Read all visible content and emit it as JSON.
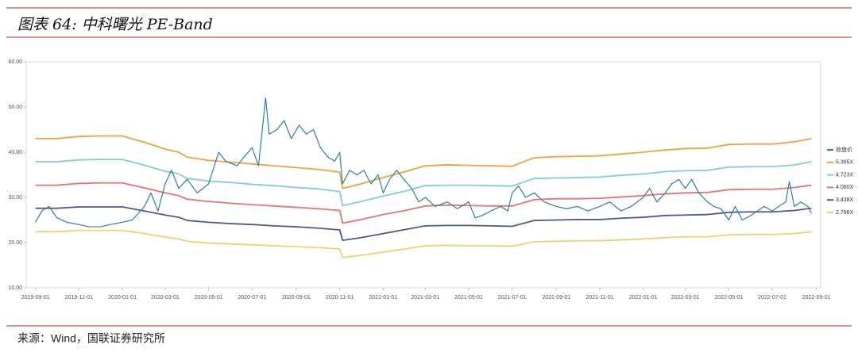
{
  "chart_data": {
    "type": "line",
    "title": "图表 64:  中科曙光 PE-Band",
    "source": "来源：Wind，国联证券研究所",
    "legend": "right",
    "grid": false,
    "xlim": [
      "2019-08-19",
      "2022-09-07"
    ],
    "xticks": [
      "2019-09-01",
      "2019-11-01",
      "2020-01-01",
      "2020-03-01",
      "2020-05-01",
      "2020-07-01",
      "2020-09-01",
      "2020-11-01",
      "2021-01-01",
      "2021-03-01",
      "2021-05-01",
      "2021-07-01",
      "2021-09-01",
      "2021-11-01",
      "2022-01-01",
      "2022-03-01",
      "2022-05-01",
      "2022-07-01",
      "2022-09-01"
    ],
    "ylim": [
      10,
      60
    ],
    "yticks": [
      {
        "value": 10,
        "label": "10.00"
      },
      {
        "value": 20,
        "label": "20.00"
      },
      {
        "value": 30,
        "label": "30.00"
      },
      {
        "value": 40,
        "label": "40.00"
      },
      {
        "value": 50,
        "label": "50.00"
      },
      {
        "value": 60,
        "label": "60.00"
      }
    ],
    "series": [
      {
        "name": "收盘价",
        "color": "#2e7fa8",
        "x": [
          "2019-09-01",
          "2019-09-10",
          "2019-09-20",
          "2019-10-01",
          "2019-10-15",
          "2019-11-01",
          "2019-11-15",
          "2019-12-01",
          "2019-12-15",
          "2020-01-01",
          "2020-01-15",
          "2020-02-01",
          "2020-02-10",
          "2020-02-20",
          "2020-03-01",
          "2020-03-10",
          "2020-03-20",
          "2020-04-01",
          "2020-04-15",
          "2020-05-01",
          "2020-05-15",
          "2020-05-25",
          "2020-06-10",
          "2020-06-20",
          "2020-07-01",
          "2020-07-10",
          "2020-07-20",
          "2020-07-25",
          "2020-08-05",
          "2020-08-15",
          "2020-08-25",
          "2020-09-05",
          "2020-09-15",
          "2020-09-25",
          "2020-10-05",
          "2020-10-15",
          "2020-10-25",
          "2020-11-01",
          "2020-11-05",
          "2020-11-15",
          "2020-11-25",
          "2020-12-05",
          "2020-12-15",
          "2020-12-25",
          "2021-01-01",
          "2021-01-10",
          "2021-01-20",
          "2021-01-30",
          "2021-02-10",
          "2021-02-20",
          "2021-03-01",
          "2021-03-15",
          "2021-04-01",
          "2021-04-15",
          "2021-05-01",
          "2021-05-10",
          "2021-05-20",
          "2021-06-01",
          "2021-06-15",
          "2021-06-25",
          "2021-07-01",
          "2021-07-10",
          "2021-07-20",
          "2021-08-01",
          "2021-08-15",
          "2021-09-01",
          "2021-09-15",
          "2021-10-01",
          "2021-10-15",
          "2021-11-01",
          "2021-11-15",
          "2021-12-01",
          "2021-12-15",
          "2022-01-01",
          "2022-01-10",
          "2022-01-20",
          "2022-02-01",
          "2022-02-10",
          "2022-02-20",
          "2022-03-01",
          "2022-03-10",
          "2022-03-20",
          "2022-04-01",
          "2022-04-10",
          "2022-04-20",
          "2022-05-01",
          "2022-05-10",
          "2022-05-20",
          "2022-06-01",
          "2022-06-10",
          "2022-06-20",
          "2022-07-01",
          "2022-07-10",
          "2022-07-20",
          "2022-07-25",
          "2022-08-01",
          "2022-08-10",
          "2022-08-20",
          "2022-08-25"
        ],
        "values": [
          24.5,
          27,
          28,
          25.5,
          24.5,
          24,
          23.5,
          23.5,
          24,
          24.5,
          25,
          28,
          31,
          27,
          33,
          36,
          32,
          34,
          31,
          33,
          40,
          38,
          37,
          39,
          41,
          37,
          52,
          44,
          45,
          47,
          43,
          46,
          44,
          45,
          41,
          39,
          38,
          40,
          33,
          36,
          35,
          36,
          33,
          35,
          31,
          34,
          36,
          34,
          32,
          29,
          30,
          28,
          29,
          27.5,
          29,
          25.5,
          26,
          27,
          28,
          27,
          31,
          32.5,
          30,
          31,
          29,
          28,
          27.5,
          28,
          27,
          28,
          29,
          27,
          28,
          30,
          32,
          29,
          31,
          33,
          34,
          32,
          34,
          31,
          29,
          28,
          27.5,
          25,
          28,
          25,
          26,
          27,
          28,
          27,
          28,
          29,
          33.5,
          28,
          29,
          28,
          26.5
        ]
      },
      {
        "name": "5.365X",
        "color": "#f5a03c",
        "x": [
          "2019-09-01",
          "2019-10-01",
          "2019-11-01",
          "2019-12-01",
          "2020-01-01",
          "2020-02-01",
          "2020-03-01",
          "2020-03-20",
          "2020-04-01",
          "2020-05-01",
          "2020-06-01",
          "2020-07-01",
          "2020-08-01",
          "2020-09-01",
          "2020-10-01",
          "2020-11-01",
          "2020-11-05",
          "2020-12-01",
          "2021-01-01",
          "2021-02-01",
          "2021-03-01",
          "2021-04-01",
          "2021-05-01",
          "2021-06-01",
          "2021-07-01",
          "2021-08-01",
          "2021-09-01",
          "2021-10-01",
          "2021-11-01",
          "2021-12-01",
          "2022-01-01",
          "2022-02-01",
          "2022-03-01",
          "2022-04-01",
          "2022-05-01",
          "2022-06-01",
          "2022-07-01",
          "2022-08-01",
          "2022-08-25"
        ],
        "values": [
          43.0,
          43.0,
          43.5,
          43.6,
          43.6,
          42.2,
          40.7,
          40.0,
          38.9,
          38.2,
          37.8,
          37.4,
          37.0,
          36.6,
          36.2,
          35.6,
          32.0,
          33.0,
          34.4,
          35.7,
          37.0,
          37.2,
          37.1,
          37.0,
          36.9,
          38.8,
          39.0,
          39.1,
          39.2,
          39.6,
          40.0,
          40.5,
          40.8,
          40.9,
          41.7,
          41.8,
          41.8,
          42.3,
          43.0
        ]
      },
      {
        "name": "4.723X",
        "color": "#7fd0d0",
        "x": [
          "2019-09-01",
          "2019-10-01",
          "2019-11-01",
          "2019-12-01",
          "2020-01-01",
          "2020-02-01",
          "2020-03-01",
          "2020-03-20",
          "2020-04-01",
          "2020-05-01",
          "2020-06-01",
          "2020-07-01",
          "2020-08-01",
          "2020-09-01",
          "2020-10-01",
          "2020-11-01",
          "2020-11-05",
          "2020-12-01",
          "2021-01-01",
          "2021-02-01",
          "2021-03-01",
          "2021-04-01",
          "2021-05-01",
          "2021-06-01",
          "2021-07-01",
          "2021-08-01",
          "2021-09-01",
          "2021-10-01",
          "2021-11-01",
          "2021-12-01",
          "2022-01-01",
          "2022-02-01",
          "2022-03-01",
          "2022-04-01",
          "2022-05-01",
          "2022-06-01",
          "2022-07-01",
          "2022-08-01",
          "2022-08-25"
        ],
        "values": [
          37.9,
          37.9,
          38.3,
          38.4,
          38.4,
          37.1,
          35.8,
          35.2,
          34.2,
          33.6,
          33.3,
          32.9,
          32.6,
          32.2,
          31.9,
          31.3,
          28.2,
          29.1,
          30.3,
          31.4,
          32.6,
          32.7,
          32.7,
          32.6,
          32.5,
          34.2,
          34.3,
          34.4,
          34.5,
          34.9,
          35.2,
          35.7,
          35.9,
          36.0,
          36.7,
          36.8,
          36.8,
          37.2,
          37.9
        ]
      },
      {
        "name": "4.080X",
        "color": "#ea7272",
        "x": [
          "2019-09-01",
          "2019-10-01",
          "2019-11-01",
          "2019-12-01",
          "2020-01-01",
          "2020-02-01",
          "2020-03-01",
          "2020-03-20",
          "2020-04-01",
          "2020-05-01",
          "2020-06-01",
          "2020-07-01",
          "2020-08-01",
          "2020-09-01",
          "2020-10-01",
          "2020-11-01",
          "2020-11-05",
          "2020-12-01",
          "2021-01-01",
          "2021-02-01",
          "2021-03-01",
          "2021-04-01",
          "2021-05-01",
          "2021-06-01",
          "2021-07-01",
          "2021-08-01",
          "2021-09-01",
          "2021-10-01",
          "2021-11-01",
          "2021-12-01",
          "2022-01-01",
          "2022-02-01",
          "2022-03-01",
          "2022-04-01",
          "2022-05-01",
          "2022-06-01",
          "2022-07-01",
          "2022-08-01",
          "2022-08-25"
        ],
        "values": [
          32.7,
          32.7,
          33.1,
          33.2,
          33.2,
          32.1,
          31.0,
          30.4,
          29.6,
          29.1,
          28.7,
          28.4,
          28.1,
          27.8,
          27.5,
          27.1,
          24.3,
          25.1,
          26.2,
          27.1,
          28.1,
          28.3,
          28.2,
          28.1,
          28.1,
          29.5,
          29.7,
          29.7,
          29.8,
          30.1,
          30.4,
          30.8,
          31.0,
          31.1,
          31.7,
          31.8,
          31.8,
          32.2,
          32.7
        ]
      },
      {
        "name": "3.438X",
        "color": "#4f5a8c",
        "x": [
          "2019-09-01",
          "2019-10-01",
          "2019-11-01",
          "2019-12-01",
          "2020-01-01",
          "2020-02-01",
          "2020-03-01",
          "2020-03-20",
          "2020-04-01",
          "2020-05-01",
          "2020-06-01",
          "2020-07-01",
          "2020-08-01",
          "2020-09-01",
          "2020-10-01",
          "2020-11-01",
          "2020-11-05",
          "2020-12-01",
          "2021-01-01",
          "2021-02-01",
          "2021-03-01",
          "2021-04-01",
          "2021-05-01",
          "2021-06-01",
          "2021-07-01",
          "2021-08-01",
          "2021-09-01",
          "2021-10-01",
          "2021-11-01",
          "2021-12-01",
          "2022-01-01",
          "2022-02-01",
          "2022-03-01",
          "2022-04-01",
          "2022-05-01",
          "2022-06-01",
          "2022-07-01",
          "2022-08-01",
          "2022-08-25"
        ],
        "values": [
          27.6,
          27.6,
          27.9,
          27.9,
          27.9,
          27.0,
          26.1,
          25.6,
          24.9,
          24.5,
          24.2,
          24.0,
          23.7,
          23.5,
          23.2,
          22.8,
          20.5,
          21.1,
          22.0,
          22.9,
          23.7,
          23.8,
          23.8,
          23.7,
          23.6,
          24.9,
          25.0,
          25.1,
          25.1,
          25.4,
          25.6,
          26.0,
          26.1,
          26.2,
          26.7,
          26.8,
          26.8,
          27.1,
          27.6
        ]
      },
      {
        "name": "2.796X",
        "color": "#f0d070",
        "x": [
          "2019-09-01",
          "2019-10-01",
          "2019-11-01",
          "2019-12-01",
          "2020-01-01",
          "2020-02-01",
          "2020-03-01",
          "2020-03-20",
          "2020-04-01",
          "2020-05-01",
          "2020-06-01",
          "2020-07-01",
          "2020-08-01",
          "2020-09-01",
          "2020-10-01",
          "2020-11-01",
          "2020-11-05",
          "2020-12-01",
          "2021-01-01",
          "2021-02-01",
          "2021-03-01",
          "2021-04-01",
          "2021-05-01",
          "2021-06-01",
          "2021-07-01",
          "2021-08-01",
          "2021-09-01",
          "2021-10-01",
          "2021-11-01",
          "2021-12-01",
          "2022-01-01",
          "2022-02-01",
          "2022-03-01",
          "2022-04-01",
          "2022-05-01",
          "2022-06-01",
          "2022-07-01",
          "2022-08-01",
          "2022-08-25"
        ],
        "values": [
          22.4,
          22.4,
          22.7,
          22.7,
          22.7,
          22.0,
          21.2,
          20.8,
          20.3,
          19.9,
          19.7,
          19.5,
          19.3,
          19.1,
          18.9,
          18.6,
          16.7,
          17.2,
          17.9,
          18.6,
          19.3,
          19.4,
          19.3,
          19.3,
          19.2,
          20.2,
          20.3,
          20.4,
          20.4,
          20.6,
          20.8,
          21.1,
          21.3,
          21.3,
          21.7,
          21.8,
          21.8,
          22.0,
          22.4
        ]
      }
    ]
  }
}
